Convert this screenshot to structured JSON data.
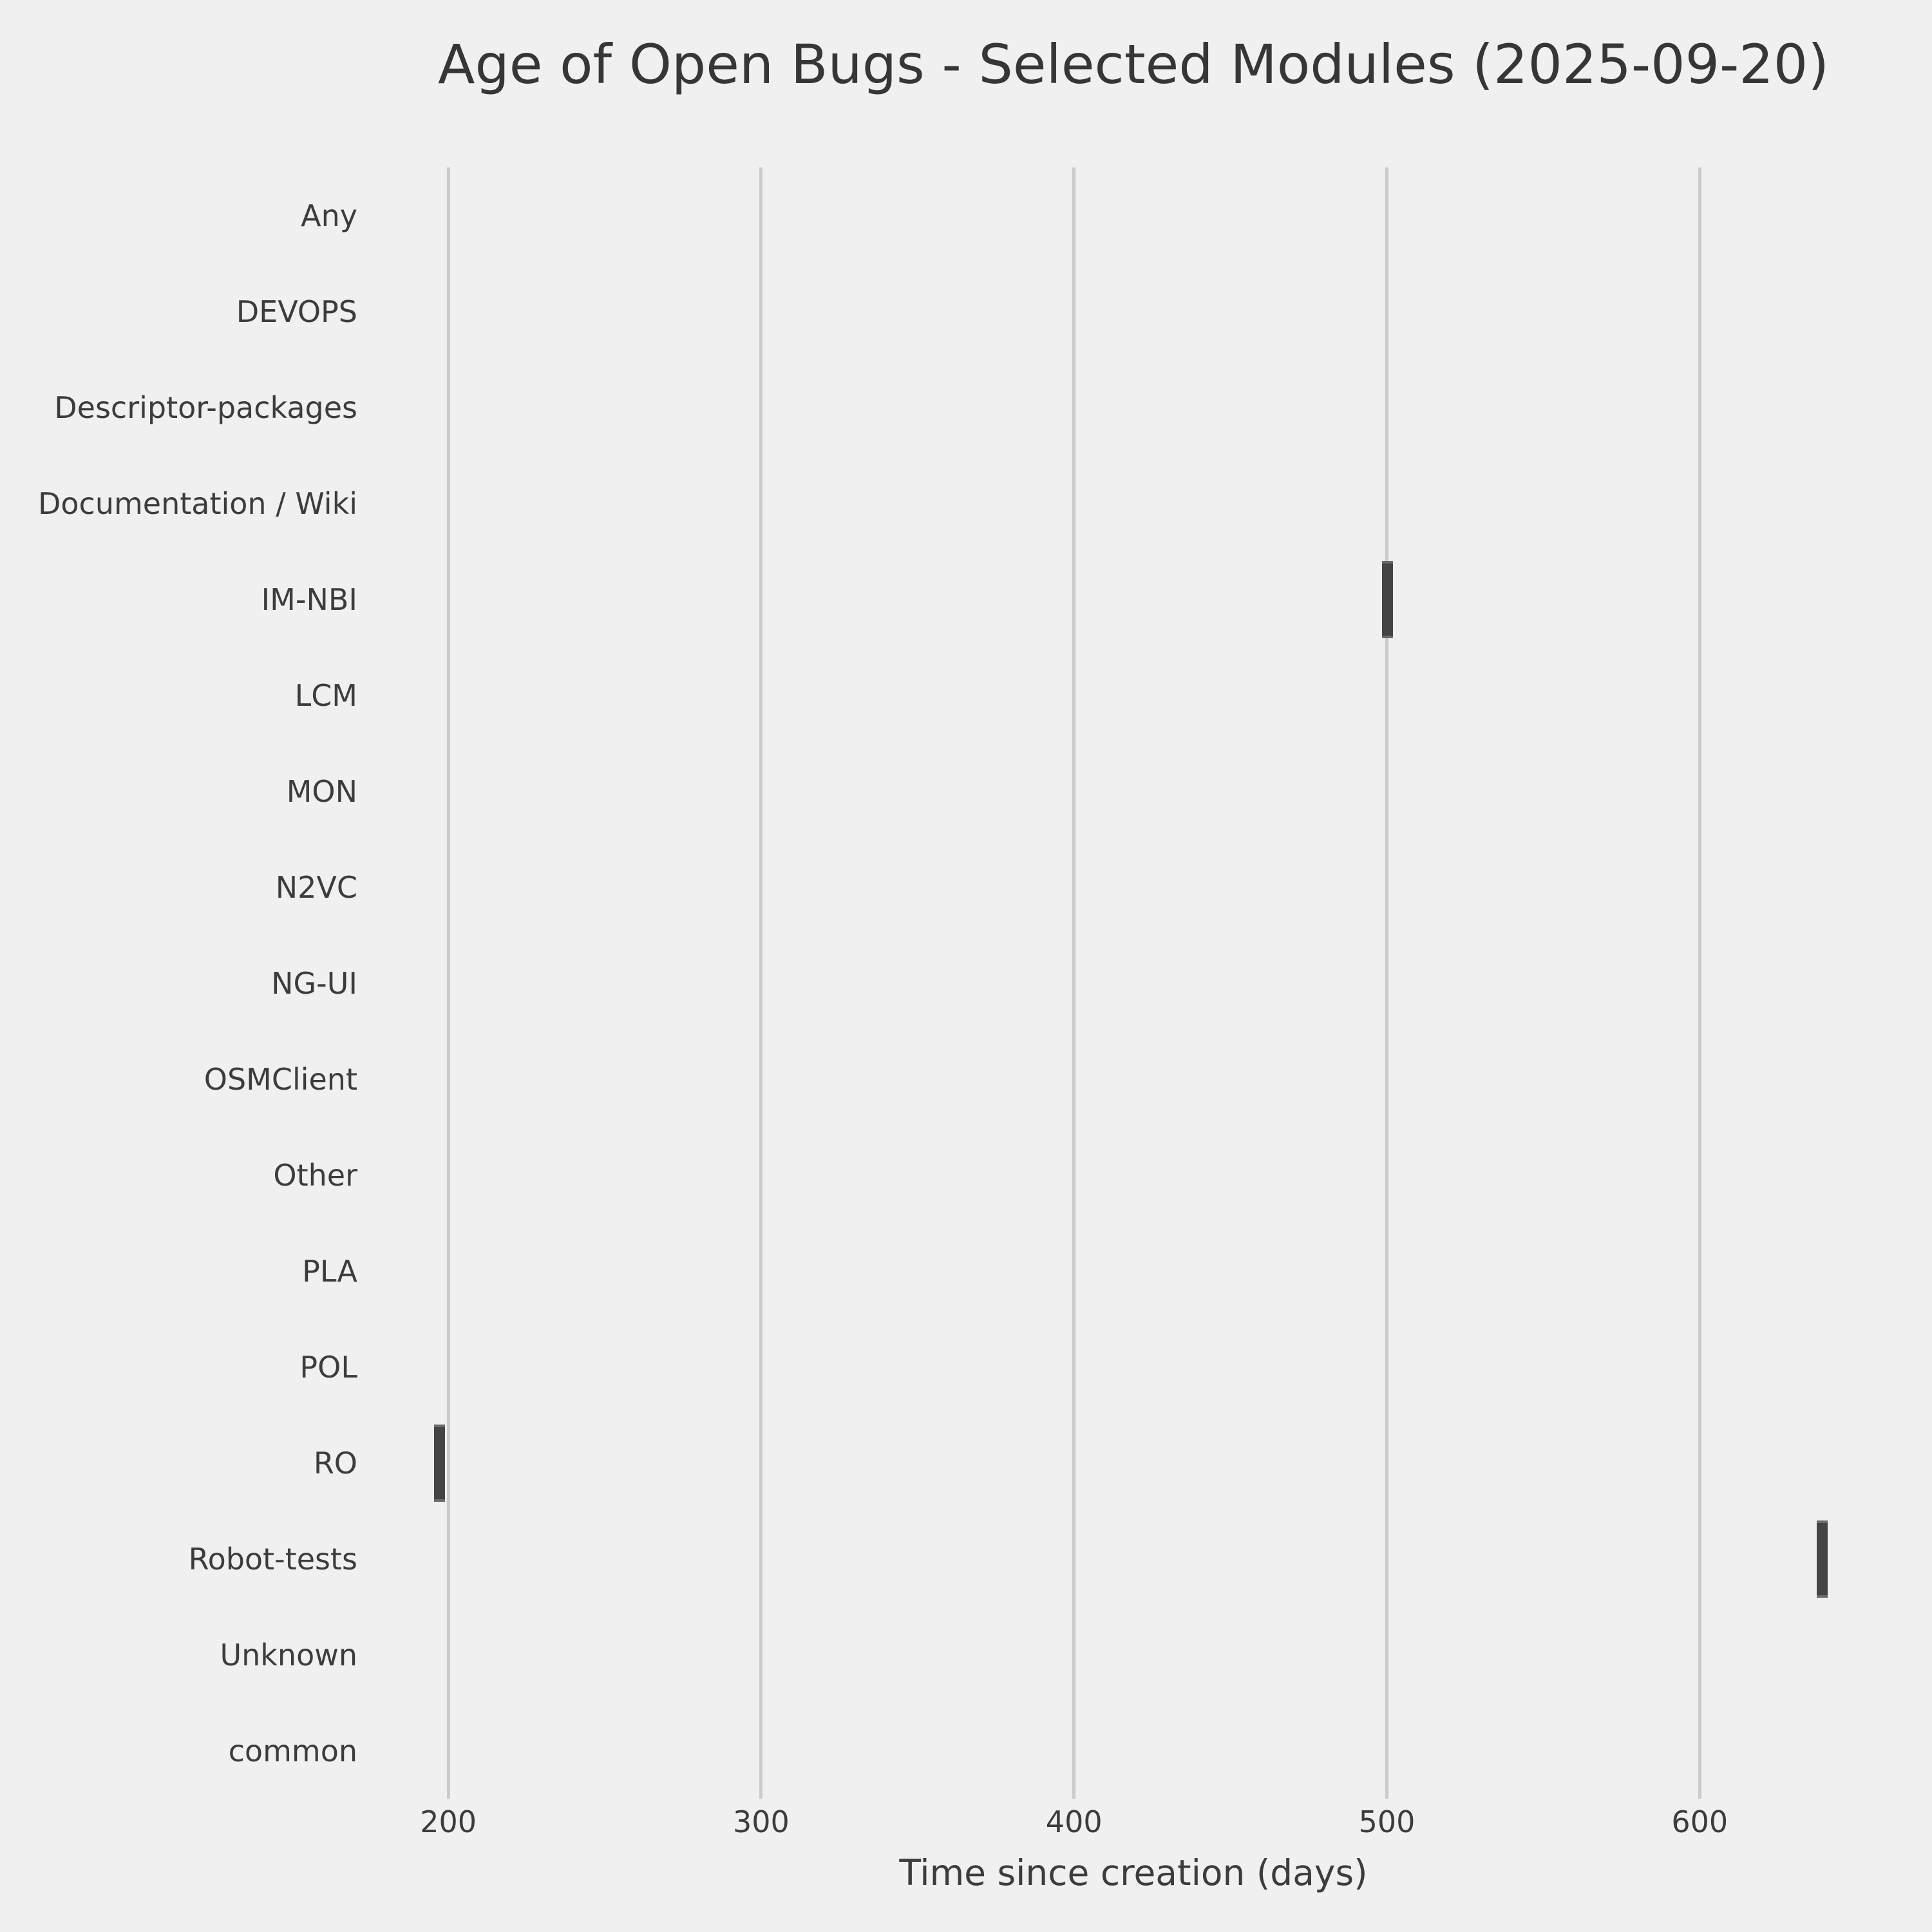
{
  "style": {
    "background_color": "#f0f0f0",
    "gridline_color": "#cbcbcb",
    "bar_fill_color": "#444444",
    "bar_edge_color": "#6b6b6b",
    "text_color": "#3c3c3c",
    "title_color": "#363636"
  },
  "chart_data": {
    "type": "boxplot",
    "orientation": "horizontal",
    "title": "Age of Open Bugs - Selected Modules (2025-09-20)",
    "xlabel": "Time since creation (days)",
    "categories": [
      "Any",
      "DEVOPS",
      "Descriptor-packages",
      "Documentation / Wiki",
      "IM-NBI",
      "LCM",
      "MON",
      "N2VC",
      "NG-UI",
      "OSMClient",
      "Other",
      "PLA",
      "POL",
      "RO",
      "Robot-tests",
      "Unknown",
      "common"
    ],
    "x_ticks": [
      200,
      300,
      400,
      500,
      600
    ],
    "xlim": [
      173,
      665
    ],
    "grid": "vertical gridlines only, no axis spines, no tick marks",
    "legend": "none",
    "boxes": [
      {
        "category": "IM-NBI",
        "min": 498.5,
        "max": 502,
        "center": 500.2
      },
      {
        "category": "RO",
        "min": 195.5,
        "max": 199,
        "center": 197.2
      },
      {
        "category": "Robot-tests",
        "min": 637.5,
        "max": 641,
        "center": 639.2
      }
    ],
    "empty_categories": [
      "Any",
      "DEVOPS",
      "Descriptor-packages",
      "Documentation / Wiki",
      "LCM",
      "MON",
      "N2VC",
      "NG-UI",
      "OSMClient",
      "Other",
      "PLA",
      "POL",
      "Unknown",
      "common"
    ]
  }
}
